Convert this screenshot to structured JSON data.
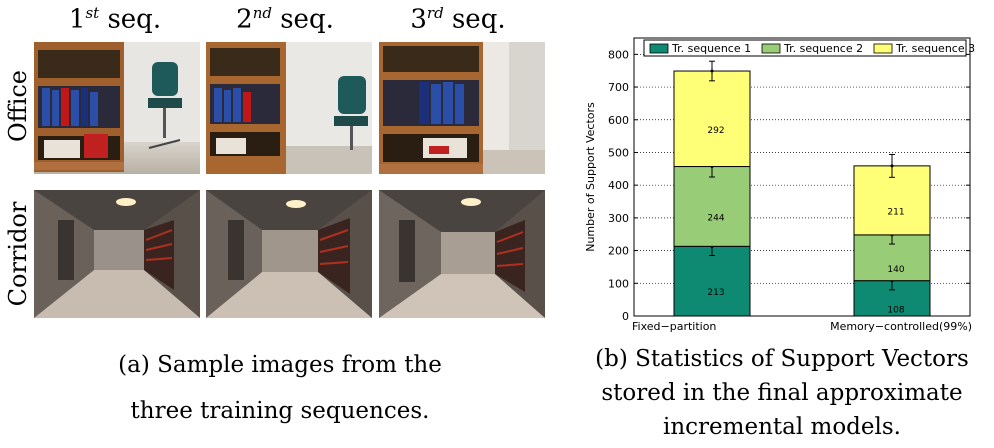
{
  "panel_a": {
    "columns": [
      {
        "base": "1",
        "sup": "st",
        "rest": " seq."
      },
      {
        "base": "2",
        "sup": "nd",
        "rest": " seq."
      },
      {
        "base": "3",
        "sup": "rd",
        "rest": " seq."
      }
    ],
    "rows": [
      "Office",
      "Corridor"
    ],
    "caption_line1": "(a) Sample images from the",
    "caption_line2": "three training sequences."
  },
  "panel_b": {
    "caption_line1": "(b) Statistics of Support Vectors",
    "caption_line2": "stored in the final approximate",
    "caption_line3": "incremental models."
  },
  "chart_data": {
    "type": "bar",
    "stacked": true,
    "categories": [
      "Fixed−partition",
      "Memory−controlled(99%)"
    ],
    "ylabel": "Number of Support Vectors",
    "xlabel": "",
    "ylim": [
      0,
      850
    ],
    "yticks": [
      0,
      100,
      200,
      300,
      400,
      500,
      600,
      700,
      800
    ],
    "grid": "horizontal-dotted",
    "legend_position": "top",
    "series": [
      {
        "name": "Tr. sequence 1",
        "color": "#0e8a73",
        "values": [
          213,
          108
        ],
        "errors": [
          28,
          28
        ]
      },
      {
        "name": "Tr. sequence 2",
        "color": "#99cc77",
        "values": [
          244,
          140
        ],
        "errors": [
          32,
          28
        ]
      },
      {
        "name": "Tr. sequence 3",
        "color": "#ffff77",
        "values": [
          292,
          211
        ],
        "errors": [
          30,
          35
        ]
      }
    ]
  }
}
